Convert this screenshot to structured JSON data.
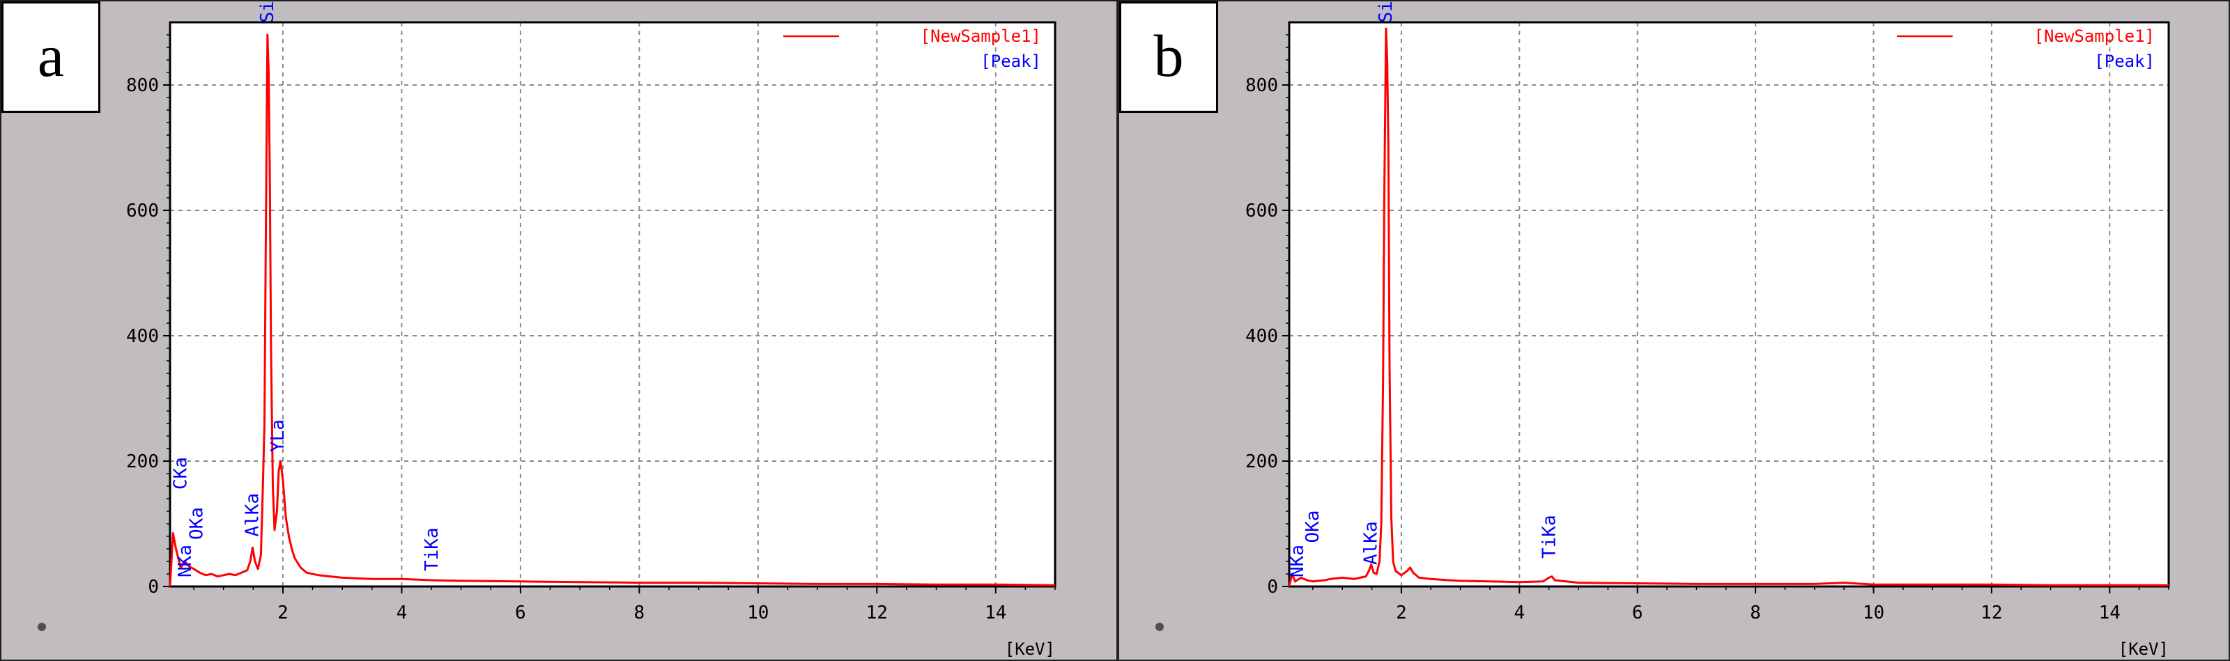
{
  "chart_data": [
    {
      "panel_label": "a",
      "type": "line",
      "xlabel": "[KeV]",
      "ylabel": "",
      "xlim": [
        0.1,
        15
      ],
      "ylim": [
        0,
        900
      ],
      "x_ticks": [
        2,
        4,
        6,
        8,
        10,
        12,
        14
      ],
      "y_ticks": [
        0,
        200,
        400,
        600,
        800
      ],
      "grid": true,
      "legend": {
        "position": "top-right",
        "entries": [
          "[NewSample1]",
          "[Peak]"
        ]
      },
      "series": [
        {
          "name": "[NewSample1]",
          "color": "#ff0000",
          "points": [
            [
              0.1,
              0
            ],
            [
              0.15,
              85
            ],
            [
              0.2,
              60
            ],
            [
              0.28,
              30
            ],
            [
              0.35,
              40
            ],
            [
              0.42,
              32
            ],
            [
              0.5,
              28
            ],
            [
              0.6,
              22
            ],
            [
              0.7,
              18
            ],
            [
              0.8,
              20
            ],
            [
              0.9,
              16
            ],
            [
              1.0,
              18
            ],
            [
              1.1,
              20
            ],
            [
              1.2,
              18
            ],
            [
              1.3,
              22
            ],
            [
              1.4,
              26
            ],
            [
              1.45,
              40
            ],
            [
              1.49,
              62
            ],
            [
              1.53,
              40
            ],
            [
              1.58,
              28
            ],
            [
              1.63,
              50
            ],
            [
              1.66,
              150
            ],
            [
              1.69,
              260
            ],
            [
              1.71,
              520
            ],
            [
              1.73,
              760
            ],
            [
              1.74,
              880
            ],
            [
              1.76,
              820
            ],
            [
              1.78,
              650
            ],
            [
              1.8,
              380
            ],
            [
              1.83,
              160
            ],
            [
              1.86,
              90
            ],
            [
              1.9,
              120
            ],
            [
              1.93,
              185
            ],
            [
              1.96,
              200
            ],
            [
              2.0,
              170
            ],
            [
              2.05,
              110
            ],
            [
              2.1,
              80
            ],
            [
              2.15,
              60
            ],
            [
              2.2,
              45
            ],
            [
              2.3,
              30
            ],
            [
              2.4,
              22
            ],
            [
              2.6,
              18
            ],
            [
              2.8,
              16
            ],
            [
              3.0,
              14
            ],
            [
              3.5,
              12
            ],
            [
              4.0,
              12
            ],
            [
              4.5,
              10
            ],
            [
              5.0,
              9
            ],
            [
              6,
              8
            ],
            [
              7,
              7
            ],
            [
              8,
              6
            ],
            [
              9,
              6
            ],
            [
              10,
              5
            ],
            [
              11,
              4
            ],
            [
              12,
              4
            ],
            [
              13,
              3
            ],
            [
              14,
              3
            ],
            [
              15,
              2
            ]
          ]
        }
      ],
      "peak_labels": [
        {
          "text": "CKa",
          "x": 0.28,
          "y": 150
        },
        {
          "text": "NKa",
          "x": 0.36,
          "y": 10
        },
        {
          "text": "OKa",
          "x": 0.55,
          "y": 70
        },
        {
          "text": "AlKa",
          "x": 1.49,
          "y": 75
        },
        {
          "text": "SiKa",
          "x": 1.74,
          "y": 895
        },
        {
          "text": "YLa",
          "x": 1.92,
          "y": 210
        },
        {
          "text": "TiKa",
          "x": 4.51,
          "y": 20
        }
      ]
    },
    {
      "panel_label": "b",
      "type": "line",
      "xlabel": "[KeV]",
      "ylabel": "",
      "xlim": [
        0.1,
        15
      ],
      "ylim": [
        0,
        900
      ],
      "x_ticks": [
        2,
        4,
        6,
        8,
        10,
        12,
        14
      ],
      "y_ticks": [
        0,
        200,
        400,
        600,
        800
      ],
      "grid": true,
      "legend": {
        "position": "top-right",
        "entries": [
          "[NewSample1]",
          "[Peak]"
        ]
      },
      "series": [
        {
          "name": "[NewSample1]",
          "color": "#ff0000",
          "points": [
            [
              0.1,
              0
            ],
            [
              0.15,
              20
            ],
            [
              0.2,
              8
            ],
            [
              0.3,
              14
            ],
            [
              0.4,
              10
            ],
            [
              0.5,
              8
            ],
            [
              0.6,
              9
            ],
            [
              0.7,
              10
            ],
            [
              0.8,
              12
            ],
            [
              0.9,
              13
            ],
            [
              1.0,
              14
            ],
            [
              1.1,
              13
            ],
            [
              1.2,
              12
            ],
            [
              1.3,
              14
            ],
            [
              1.4,
              16
            ],
            [
              1.45,
              25
            ],
            [
              1.49,
              35
            ],
            [
              1.53,
              22
            ],
            [
              1.58,
              20
            ],
            [
              1.63,
              40
            ],
            [
              1.66,
              100
            ],
            [
              1.69,
              330
            ],
            [
              1.71,
              620
            ],
            [
              1.73,
              800
            ],
            [
              1.74,
              890
            ],
            [
              1.76,
              840
            ],
            [
              1.78,
              700
            ],
            [
              1.8,
              350
            ],
            [
              1.83,
              110
            ],
            [
              1.86,
              40
            ],
            [
              1.9,
              25
            ],
            [
              2.0,
              18
            ],
            [
              2.1,
              25
            ],
            [
              2.15,
              30
            ],
            [
              2.2,
              22
            ],
            [
              2.3,
              14
            ],
            [
              2.5,
              12
            ],
            [
              2.8,
              10
            ],
            [
              3.0,
              9
            ],
            [
              3.5,
              8
            ],
            [
              4.0,
              7
            ],
            [
              4.4,
              8
            ],
            [
              4.5,
              14
            ],
            [
              4.55,
              16
            ],
            [
              4.6,
              10
            ],
            [
              5,
              6
            ],
            [
              6,
              5
            ],
            [
              7,
              4
            ],
            [
              8,
              4
            ],
            [
              9,
              4
            ],
            [
              9.5,
              6
            ],
            [
              10,
              3
            ],
            [
              11,
              3
            ],
            [
              12,
              3
            ],
            [
              13,
              2
            ],
            [
              14,
              2
            ],
            [
              15,
              2
            ]
          ]
        }
      ],
      "peak_labels": [
        {
          "text": "NKa",
          "x": 0.24,
          "y": 10
        },
        {
          "text": "OKa",
          "x": 0.5,
          "y": 65
        },
        {
          "text": "AlKa",
          "x": 1.49,
          "y": 30
        },
        {
          "text": "SiKa",
          "x": 1.74,
          "y": 895
        },
        {
          "text": "TiKa",
          "x": 4.51,
          "y": 40
        }
      ]
    }
  ]
}
